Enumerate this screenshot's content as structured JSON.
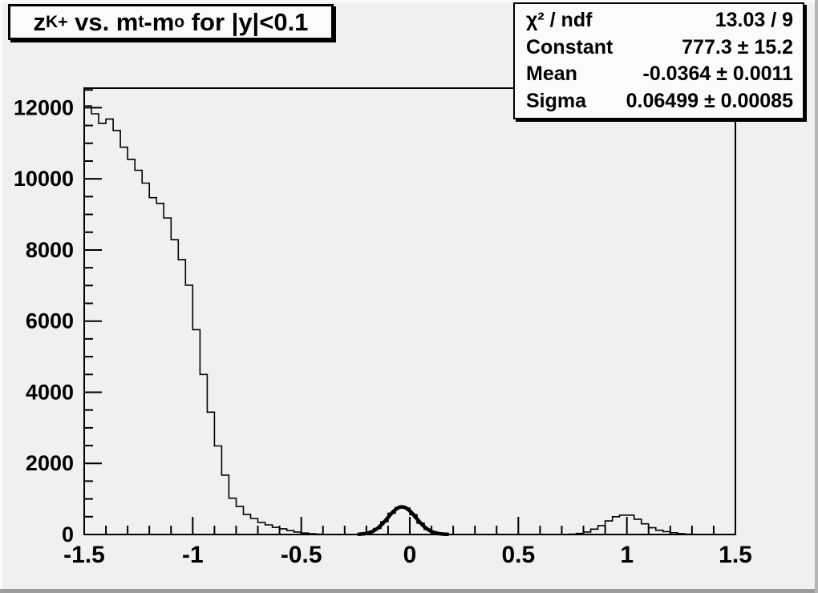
{
  "canvas": {
    "bg": "#f0f0f0",
    "highlight": "#fbfbfb",
    "shadow": "#9c9c9c",
    "line_color": "#000000"
  },
  "title": {
    "parts": [
      {
        "text": "z",
        "sub": "K+"
      },
      {
        "text": " vs. m",
        "sub": "t"
      },
      {
        "text": "-m",
        "sub": "o"
      },
      {
        "text": " for |y|<0.1",
        "sub": ""
      }
    ]
  },
  "stats": {
    "rows": [
      {
        "label": "χ² / ndf",
        "value": "13.03 / 9"
      },
      {
        "label": "Constant",
        "value": "777.3 ± 15.2"
      },
      {
        "label": "Mean",
        "value": "-0.0364 ± 0.0011"
      },
      {
        "label": "Sigma",
        "value": "0.06499 ± 0.00085"
      }
    ]
  },
  "chart_data": {
    "type": "bar",
    "subtype": "histogram-step",
    "title": "z_{K+} vs. m_{t}-m_{o} for |y|<0.1",
    "xlabel": "",
    "ylabel": "",
    "xlim": [
      -1.5,
      1.5
    ],
    "ylim": [
      0,
      12550
    ],
    "bins": 90,
    "x_major_ticks": [
      -1.5,
      -1,
      -0.5,
      0,
      0.5,
      1,
      1.5
    ],
    "x_tick_labels": [
      "-1.5",
      "-1",
      "-0.5",
      "0",
      "0.5",
      "1",
      "1.5"
    ],
    "x_minor_step": 0.1,
    "y_major_ticks": [
      0,
      2000,
      4000,
      6000,
      8000,
      10000,
      12000
    ],
    "y_tick_labels": [
      "0",
      "2000",
      "4000",
      "6000",
      "8000",
      "10000",
      "12000"
    ],
    "y_minor_step": 500,
    "grid": false,
    "legend": false,
    "values": [
      12050,
      11830,
      11560,
      11680,
      11360,
      10890,
      10550,
      10240,
      9880,
      9470,
      9310,
      8900,
      8290,
      7730,
      7010,
      5760,
      4500,
      3440,
      2490,
      1670,
      1020,
      790,
      565,
      450,
      340,
      270,
      200,
      160,
      110,
      70,
      40,
      20,
      10,
      5,
      3,
      2,
      2,
      5,
      17,
      60,
      170,
      360,
      600,
      760,
      742,
      556,
      321,
      142,
      49,
      13,
      3,
      0,
      0,
      0,
      0,
      0,
      0,
      0,
      0,
      0,
      0,
      0,
      0,
      0,
      0,
      0,
      0,
      10,
      30,
      70,
      150,
      250,
      380,
      500,
      545,
      545,
      430,
      300,
      190,
      120,
      80,
      50,
      25,
      10,
      0,
      0,
      0,
      0,
      0,
      0
    ],
    "fit": {
      "type": "gaussian",
      "constant": 777.3,
      "mean": -0.0364,
      "sigma": 0.06499,
      "draw_range": [
        -0.235,
        0.175
      ]
    }
  }
}
